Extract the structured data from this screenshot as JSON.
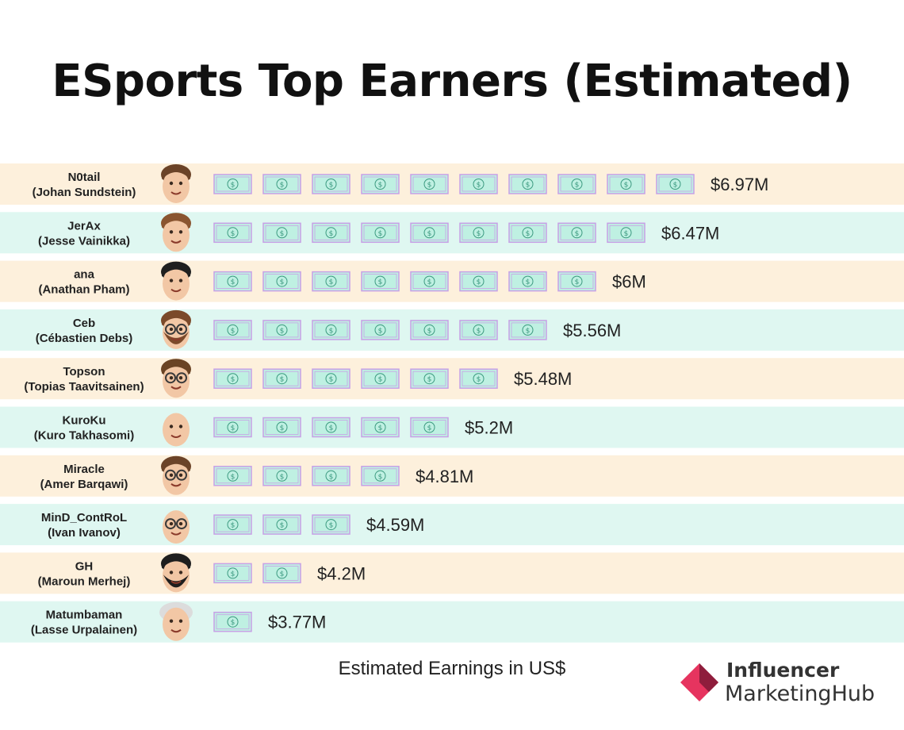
{
  "title": "ESports Top Earners (Estimated)",
  "xlabel": "Estimated Earnings in US$",
  "logo": {
    "line1": "Influencer",
    "line2": "MarketingHub"
  },
  "colors": {
    "row_odd": "#fdf0dc",
    "row_even": "#dff7f1",
    "bill_fill": "#bff0e2",
    "bill_border": "#c7a0e6",
    "bill_symbol": "#3c9a80",
    "logo_pink": "#e6345f",
    "logo_dark": "#8e1d3c"
  },
  "chart_data": {
    "type": "bar",
    "style": "pictograph",
    "unit_icon": "dollar-bill-icon",
    "categories": [
      {
        "name": "N0tail",
        "full": "(Johan Sundstein)",
        "value": 6.97,
        "label": "$6.97M",
        "icons": 10
      },
      {
        "name": "JerAx",
        "full": "(Jesse Vainikka)",
        "value": 6.47,
        "label": "$6.47M",
        "icons": 9
      },
      {
        "name": "ana",
        "full": "(Anathan Pham)",
        "value": 6,
        "label": "$6M",
        "icons": 8
      },
      {
        "name": "Ceb",
        "full": "(Cébastien Debs)",
        "value": 5.56,
        "label": "$5.56M",
        "icons": 7
      },
      {
        "name": "Topson",
        "full": "(Topias Taavitsainen)",
        "value": 5.48,
        "label": "$5.48M",
        "icons": 6
      },
      {
        "name": "KuroKu",
        "full": "(Kuro Takhasomi)",
        "value": 5.2,
        "label": "$5.2M",
        "icons": 5
      },
      {
        "name": "Miracle",
        "full": "(Amer Barqawi)",
        "value": 4.81,
        "label": "$4.81M",
        "icons": 4
      },
      {
        "name": "MinD_ContRoL",
        "full": "(Ivan Ivanov)",
        "value": 4.59,
        "label": "$4.59M",
        "icons": 3
      },
      {
        "name": "GH",
        "full": "(Maroun Merhej)",
        "value": 4.2,
        "label": "$4.2M",
        "icons": 2
      },
      {
        "name": "Matumbaman",
        "full": "(Lasse Urpalainen)",
        "value": 3.77,
        "label": "$3.77M",
        "icons": 1
      }
    ]
  },
  "avatars": [
    {
      "hair": "#6b4328",
      "beard": "none",
      "glasses": false,
      "cap": false
    },
    {
      "hair": "#8a5530",
      "beard": "none",
      "glasses": false,
      "cap": false
    },
    {
      "hair": "#1f1f1f",
      "beard": "none",
      "glasses": false,
      "cap": false
    },
    {
      "hair": "#7b4a2a",
      "beard": "#7b4a2a",
      "glasses": true,
      "cap": false
    },
    {
      "hair": "#6a4324",
      "beard": "none",
      "glasses": true,
      "cap": false
    },
    {
      "hair": "none",
      "beard": "none",
      "glasses": false,
      "cap": false
    },
    {
      "hair": "#6b4328",
      "beard": "none",
      "glasses": true,
      "cap": false
    },
    {
      "hair": "none",
      "beard": "none",
      "glasses": true,
      "cap": false
    },
    {
      "hair": "#1e1e1e",
      "beard": "#1e1e1e",
      "glasses": false,
      "cap": false
    },
    {
      "hair": "none",
      "beard": "none",
      "glasses": false,
      "cap": true
    }
  ]
}
